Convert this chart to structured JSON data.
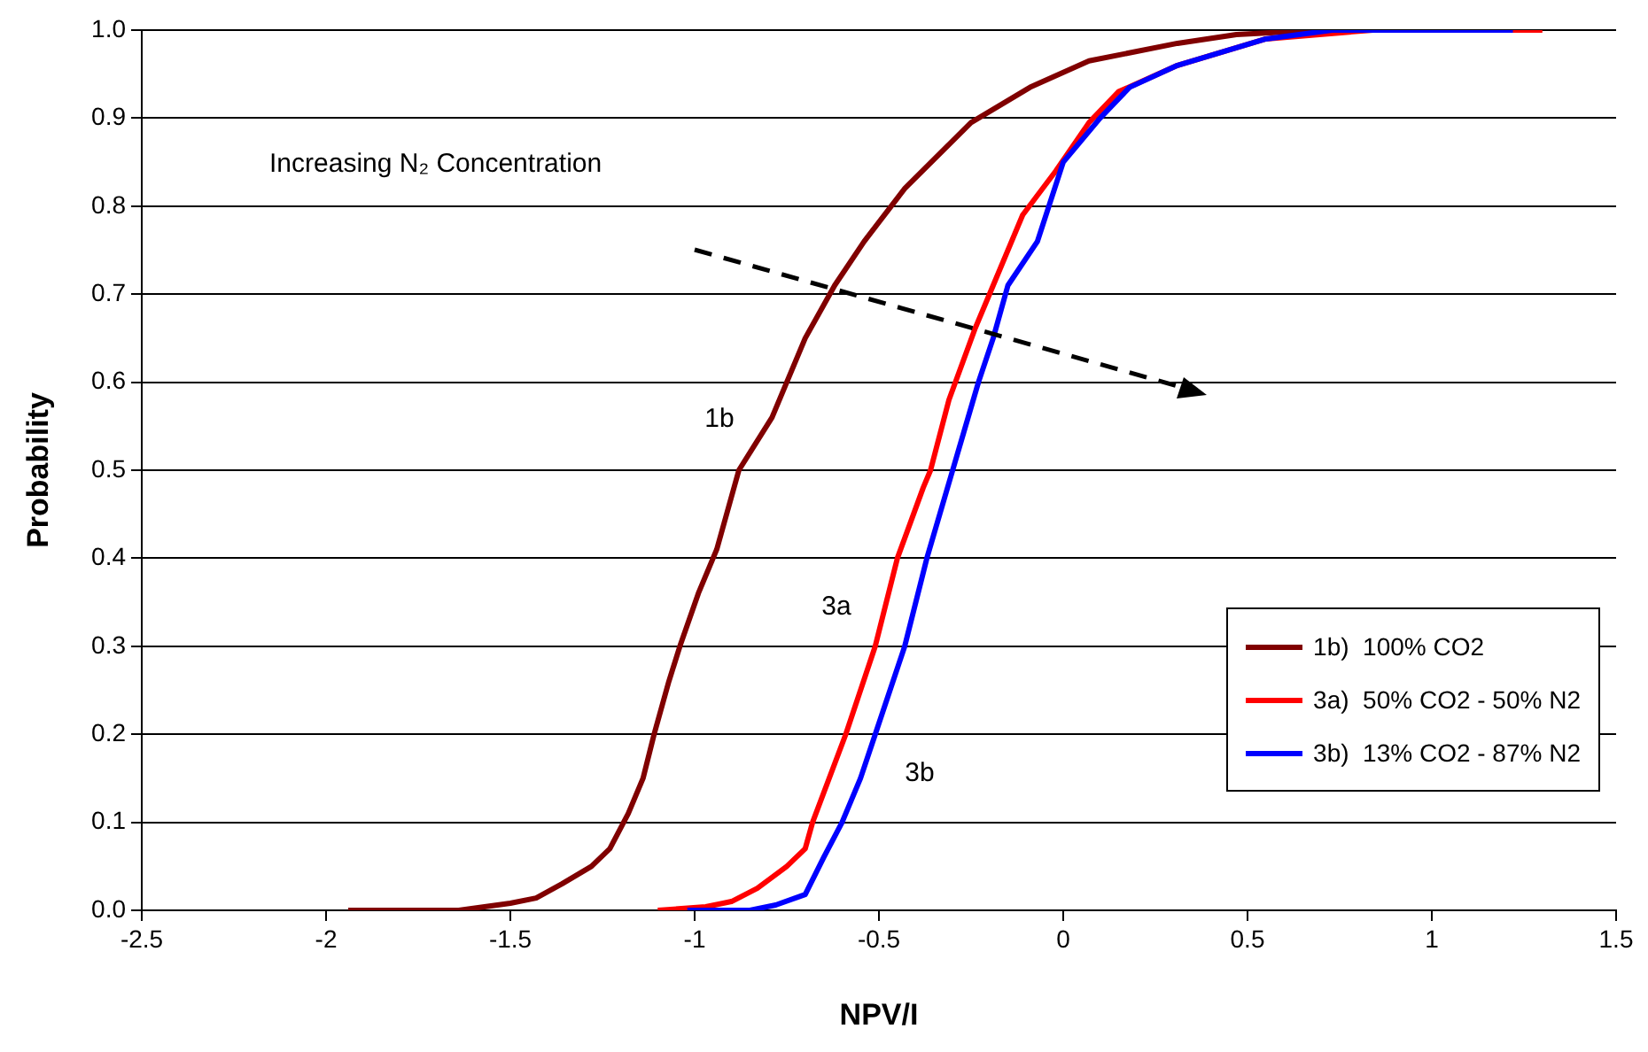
{
  "chart_data": {
    "type": "line",
    "xlabel": "NPV/I",
    "ylabel": "Probability",
    "xlim": [
      -2.5,
      1.5
    ],
    "xticks": [
      -2.5,
      -2,
      -1.5,
      -1,
      -0.5,
      0,
      0.5,
      1,
      1.5
    ],
    "ylim": [
      0,
      1
    ],
    "yticks": [
      {
        "value": 0,
        "label": "0.0"
      },
      0.1,
      0.2,
      0.3,
      0.4,
      0.5,
      0.6,
      0.7,
      0.8,
      0.9,
      {
        "value": 1,
        "label": "1.0"
      }
    ],
    "grid": "y",
    "legend": "bottom right",
    "marker": "none",
    "line_style": "solid",
    "annotations": [
      "Increasing N₂ Concentration",
      "1b",
      "3a",
      "3b"
    ],
    "series": [
      {
        "name": "1b)  100% CO2",
        "color": "#800000",
        "x": [
          -1.94,
          -1.64,
          -1.5,
          -1.43,
          -1.36,
          -1.28,
          -1.23,
          -1.18,
          -1.14,
          -1.11,
          -1.07,
          -1.04,
          -0.99,
          -0.94,
          -0.88,
          -0.79,
          -0.7,
          -0.62,
          -0.54,
          -0.43,
          -0.25,
          -0.09,
          0.07,
          0.31,
          0.47,
          0.7
        ],
        "values": [
          0,
          0,
          0.008,
          0.014,
          0.03,
          0.05,
          0.07,
          0.11,
          0.15,
          0.2,
          0.26,
          0.3,
          0.36,
          0.41,
          0.5,
          0.56,
          0.65,
          0.71,
          0.76,
          0.82,
          0.895,
          0.935,
          0.965,
          0.985,
          0.995,
          1
        ]
      },
      {
        "name": "3a)  50% CO2 - 50% N2",
        "color": "#ff0000",
        "x": [
          -1.1,
          -0.97,
          -0.9,
          -0.83,
          -0.75,
          -0.7,
          -0.68,
          -0.59,
          -0.51,
          -0.45,
          -0.38,
          -0.36,
          -0.31,
          -0.24,
          -0.19,
          -0.11,
          -0.02,
          0.07,
          0.15,
          0.31,
          0.55,
          0.84,
          1.3
        ],
        "values": [
          0,
          0.004,
          0.01,
          0.025,
          0.05,
          0.07,
          0.1,
          0.2,
          0.3,
          0.4,
          0.48,
          0.5,
          0.58,
          0.66,
          0.71,
          0.79,
          0.84,
          0.895,
          0.93,
          0.96,
          0.99,
          1,
          1
        ]
      },
      {
        "name": "3b)  13% CO2 - 87% N2",
        "color": "#0000ff",
        "x": [
          -1.02,
          -0.85,
          -0.78,
          -0.7,
          -0.65,
          -0.6,
          -0.55,
          -0.51,
          -0.43,
          -0.37,
          -0.3,
          -0.23,
          -0.19,
          -0.15,
          -0.07,
          0,
          0.1,
          0.18,
          0.31,
          0.55,
          0.73,
          1.22
        ],
        "values": [
          0,
          0,
          0.006,
          0.018,
          0.06,
          0.1,
          0.15,
          0.2,
          0.3,
          0.4,
          0.5,
          0.6,
          0.65,
          0.71,
          0.76,
          0.85,
          0.9,
          0.935,
          0.96,
          0.99,
          1,
          1
        ]
      }
    ]
  }
}
